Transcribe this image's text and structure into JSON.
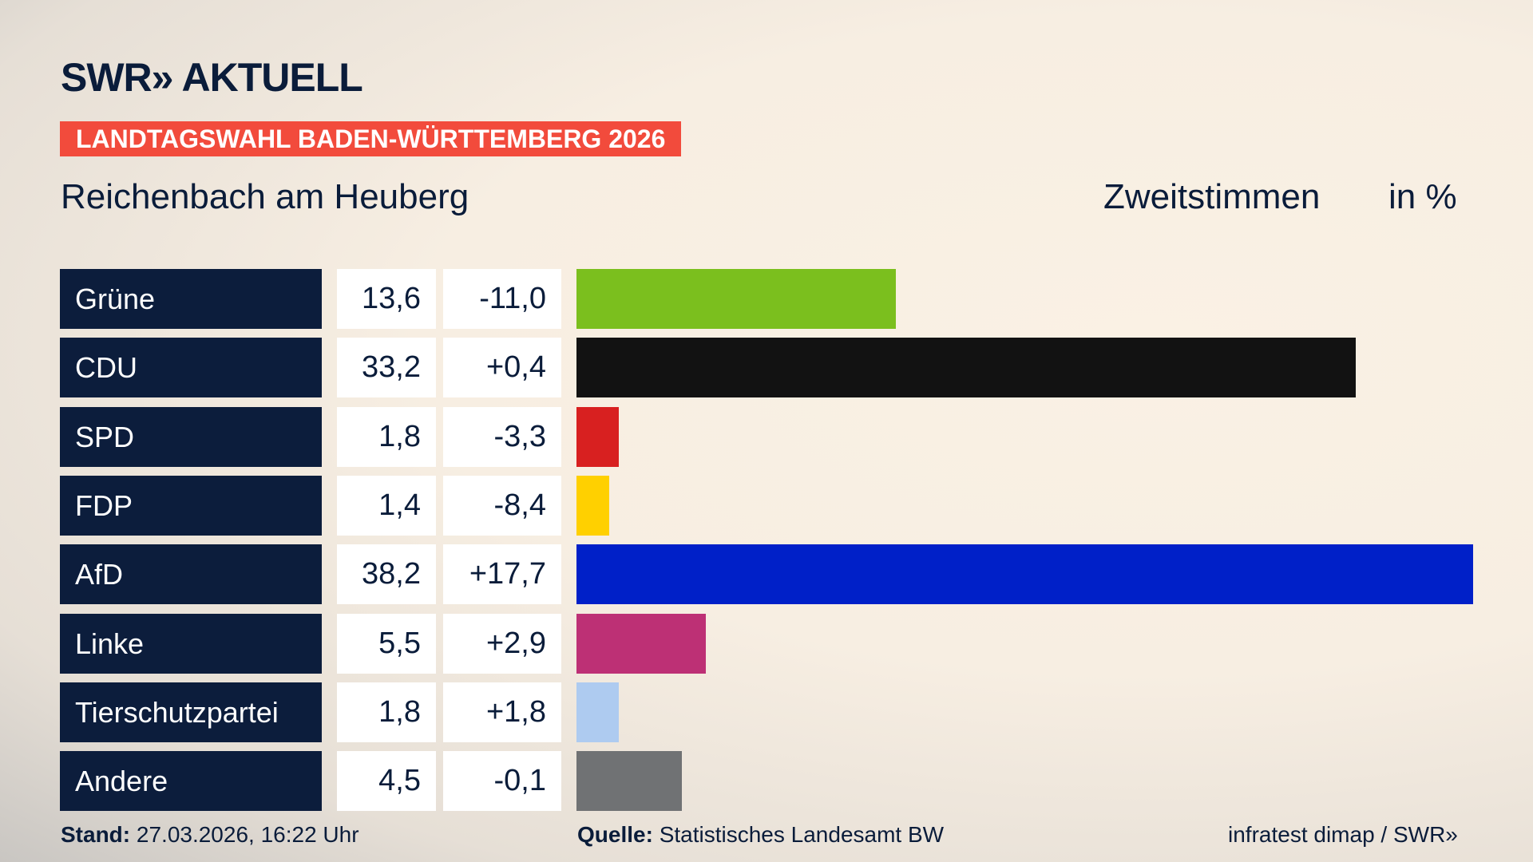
{
  "header": {
    "logo": "SWR» AKTUELL",
    "banner": "LANDTAGSWAHL BADEN-WÜRTTEMBERG 2026",
    "place": "Reichenbach am Heuberg",
    "vote_type": "Zweitstimmen",
    "unit": "in %"
  },
  "chart_data": {
    "type": "bar",
    "orientation": "horizontal",
    "xlim": [
      0,
      38.2
    ],
    "categories": [
      "Grüne",
      "CDU",
      "SPD",
      "FDP",
      "AfD",
      "Linke",
      "Tierschutzpartei",
      "Andere"
    ],
    "values": [
      "13,6",
      "33,2",
      "1,8",
      "1,4",
      "38,2",
      "5,5",
      "1,8",
      "4,5"
    ],
    "changes": [
      "-11,0",
      "+0,4",
      "-3,3",
      "-8,4",
      "+17,7",
      "+2,9",
      "+1,8",
      "-0,1"
    ],
    "numeric_values": [
      13.6,
      33.2,
      1.8,
      1.4,
      38.2,
      5.5,
      1.8,
      4.5
    ],
    "colors": [
      "#7bbf1e",
      "#121212",
      "#d82020",
      "#ffd000",
      "#0020c8",
      "#bd3075",
      "#aecbf0",
      "#707274"
    ]
  },
  "footer": {
    "stand_label": "Stand:",
    "stand": "27.03.2026, 16:22 Uhr",
    "source_label": "Quelle:",
    "source": "Statistisches Landesamt BW",
    "credit": "infratest dimap / SWR»"
  }
}
